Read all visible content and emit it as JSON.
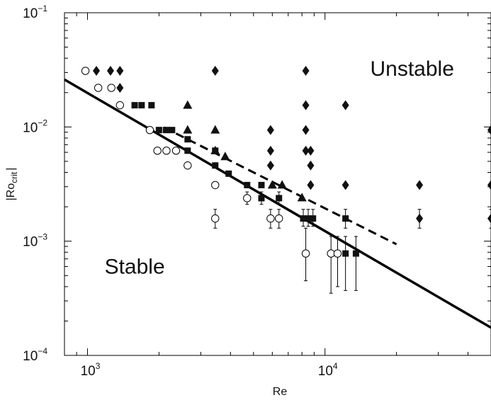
{
  "chart_data": {
    "type": "scatter",
    "xscale": "log",
    "yscale": "log",
    "xlim": [
      800,
      50000
    ],
    "ylim": [
      0.0001,
      0.1
    ],
    "xlabel": "Re",
    "ylabel": "|Ro",
    "ylabel_sub": "crit",
    "ylabel_end": "|",
    "x_ticks": [
      {
        "value": 1000,
        "base": "10",
        "exp": "3"
      },
      {
        "value": 10000,
        "base": "10",
        "exp": "4"
      }
    ],
    "y_ticks": [
      {
        "value": 0.1,
        "base": "10",
        "exp": "−1"
      },
      {
        "value": 0.01,
        "base": "10",
        "exp": "−2"
      },
      {
        "value": 0.001,
        "base": "10",
        "exp": "−3"
      },
      {
        "value": 0.0001,
        "base": "10",
        "exp": "−4"
      }
    ],
    "annotations": [
      {
        "text": "Unstable",
        "x": 15500,
        "y": 0.028
      },
      {
        "text": "Stable",
        "x": 1180,
        "y": 0.00052
      }
    ],
    "lines": [
      {
        "style": "solid",
        "points": [
          [
            800,
            0.026
          ],
          [
            50000,
            0.000175
          ]
        ]
      },
      {
        "style": "dashed",
        "points": [
          [
            2100,
            0.0099
          ],
          [
            20000,
            0.00094
          ]
        ]
      }
    ],
    "series": [
      {
        "marker": "open-circle",
        "points": [
          {
            "x": 980,
            "y": 0.031
          },
          {
            "x": 1110,
            "y": 0.022
          },
          {
            "x": 1260,
            "y": 0.022
          },
          {
            "x": 1370,
            "y": 0.0155
          },
          {
            "x": 1830,
            "y": 0.0094
          },
          {
            "x": 1970,
            "y": 0.0062
          },
          {
            "x": 2150,
            "y": 0.0062
          },
          {
            "x": 2360,
            "y": 0.0062
          },
          {
            "x": 2640,
            "y": 0.0046
          },
          {
            "x": 3450,
            "y": 0.0031
          },
          {
            "x": 3450,
            "y": 0.00158,
            "err": [
              0.0013,
              0.0019
            ]
          },
          {
            "x": 4700,
            "y": 0.00238,
            "err": [
              0.0021,
              0.0027
            ]
          },
          {
            "x": 5900,
            "y": 0.00158,
            "err": [
              0.0013,
              0.0019
            ]
          },
          {
            "x": 6400,
            "y": 0.00158,
            "err": [
              0.0013,
              0.0019
            ]
          },
          {
            "x": 8300,
            "y": 0.00078,
            "err": [
              0.00045,
              0.0013
            ]
          },
          {
            "x": 10600,
            "y": 0.00078,
            "err": [
              0.00035,
              0.0011
            ]
          },
          {
            "x": 11300,
            "y": 0.00078,
            "err": [
              0.0004,
              0.0011
            ]
          }
        ]
      },
      {
        "marker": "filled-square",
        "points": [
          {
            "x": 1580,
            "y": 0.0155
          },
          {
            "x": 1690,
            "y": 0.0155
          },
          {
            "x": 1860,
            "y": 0.0155
          },
          {
            "x": 2000,
            "y": 0.0094
          },
          {
            "x": 2140,
            "y": 0.0094
          },
          {
            "x": 2270,
            "y": 0.0094
          },
          {
            "x": 2640,
            "y": 0.0078
          },
          {
            "x": 2640,
            "y": 0.0062
          },
          {
            "x": 3450,
            "y": 0.0062
          },
          {
            "x": 3450,
            "y": 0.0046
          },
          {
            "x": 3930,
            "y": 0.0039
          },
          {
            "x": 4700,
            "y": 0.0031
          },
          {
            "x": 5400,
            "y": 0.0031
          },
          {
            "x": 5400,
            "y": 0.00238,
            "err": [
              0.0021,
              0.0027
            ]
          },
          {
            "x": 6400,
            "y": 0.00238,
            "err": [
              0.0021,
              0.0027
            ]
          },
          {
            "x": 8100,
            "y": 0.00158,
            "err": [
              0.00135,
              0.0019
            ]
          },
          {
            "x": 8500,
            "y": 0.00158,
            "err": [
              0.00135,
              0.0019
            ]
          },
          {
            "x": 8900,
            "y": 0.00158,
            "err": [
              0.00135,
              0.0019
            ]
          },
          {
            "x": 12200,
            "y": 0.00158,
            "err": [
              0.0013,
              0.0019
            ]
          },
          {
            "x": 12200,
            "y": 0.00078,
            "err": [
              0.00037,
              0.0011
            ]
          },
          {
            "x": 13500,
            "y": 0.00078,
            "err": [
              0.00037,
              0.0011
            ]
          }
        ]
      },
      {
        "marker": "filled-triangle",
        "points": [
          {
            "x": 2640,
            "y": 0.0155
          },
          {
            "x": 2640,
            "y": 0.0094
          },
          {
            "x": 3450,
            "y": 0.0094
          },
          {
            "x": 3450,
            "y": 0.0062
          },
          {
            "x": 3800,
            "y": 0.0055
          },
          {
            "x": 6000,
            "y": 0.0031
          },
          {
            "x": 6600,
            "y": 0.0031
          },
          {
            "x": 8000,
            "y": 0.0024
          }
        ]
      },
      {
        "marker": "filled-diamond",
        "points": [
          {
            "x": 1090,
            "y": 0.031
          },
          {
            "x": 1250,
            "y": 0.031
          },
          {
            "x": 1370,
            "y": 0.031
          },
          {
            "x": 1370,
            "y": 0.022
          },
          {
            "x": 3450,
            "y": 0.031
          },
          {
            "x": 5900,
            "y": 0.0094
          },
          {
            "x": 5900,
            "y": 0.0062
          },
          {
            "x": 5900,
            "y": 0.0046
          },
          {
            "x": 8300,
            "y": 0.031
          },
          {
            "x": 8300,
            "y": 0.0155
          },
          {
            "x": 8300,
            "y": 0.0094
          },
          {
            "x": 8300,
            "y": 0.0062
          },
          {
            "x": 8700,
            "y": 0.0062
          },
          {
            "x": 8700,
            "y": 0.0046
          },
          {
            "x": 8700,
            "y": 0.0031
          },
          {
            "x": 12200,
            "y": 0.0155
          },
          {
            "x": 12200,
            "y": 0.0031
          },
          {
            "x": 25000,
            "y": 0.0031
          },
          {
            "x": 25000,
            "y": 0.00158,
            "err": [
              0.0013,
              0.0019
            ]
          },
          {
            "x": 50000,
            "y": 0.0094
          },
          {
            "x": 50000,
            "y": 0.0031
          },
          {
            "x": 50000,
            "y": 0.00158,
            "err": [
              0.0013,
              0.0019
            ]
          }
        ]
      }
    ]
  }
}
